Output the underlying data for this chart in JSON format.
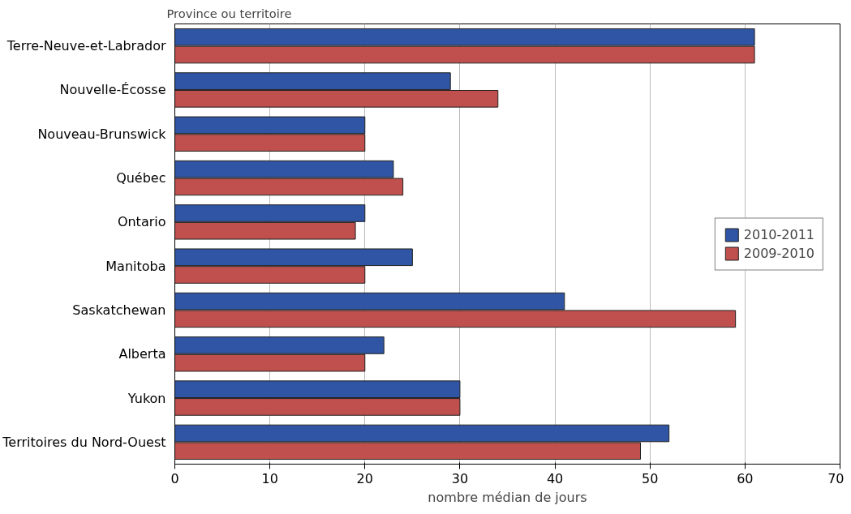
{
  "chart_data": {
    "type": "bar",
    "orientation": "horizontal",
    "ylabel": "Province ou territoire",
    "xlabel": "nombre médian de jours",
    "categories": [
      "Terre-Neuve-et-Labrador",
      "Nouvelle-Écosse",
      "Nouveau-Brunswick",
      "Québec",
      "Ontario",
      "Manitoba",
      "Saskatchewan",
      "Alberta",
      "Yukon",
      "Territoires du Nord-Ouest"
    ],
    "series": [
      {
        "name": "2010-2011",
        "color": "#2f55a4",
        "values": [
          61,
          29,
          20,
          23,
          20,
          25,
          41,
          22,
          30,
          52
        ]
      },
      {
        "name": "2009-2010",
        "color": "#c0504d",
        "values": [
          61,
          34,
          20,
          24,
          19,
          20,
          59,
          20,
          30,
          49
        ]
      }
    ],
    "xlim": [
      0,
      70
    ],
    "xticks": [
      0,
      10,
      20,
      30,
      40,
      50,
      60,
      70
    ],
    "grid": "x",
    "legend": "right"
  }
}
